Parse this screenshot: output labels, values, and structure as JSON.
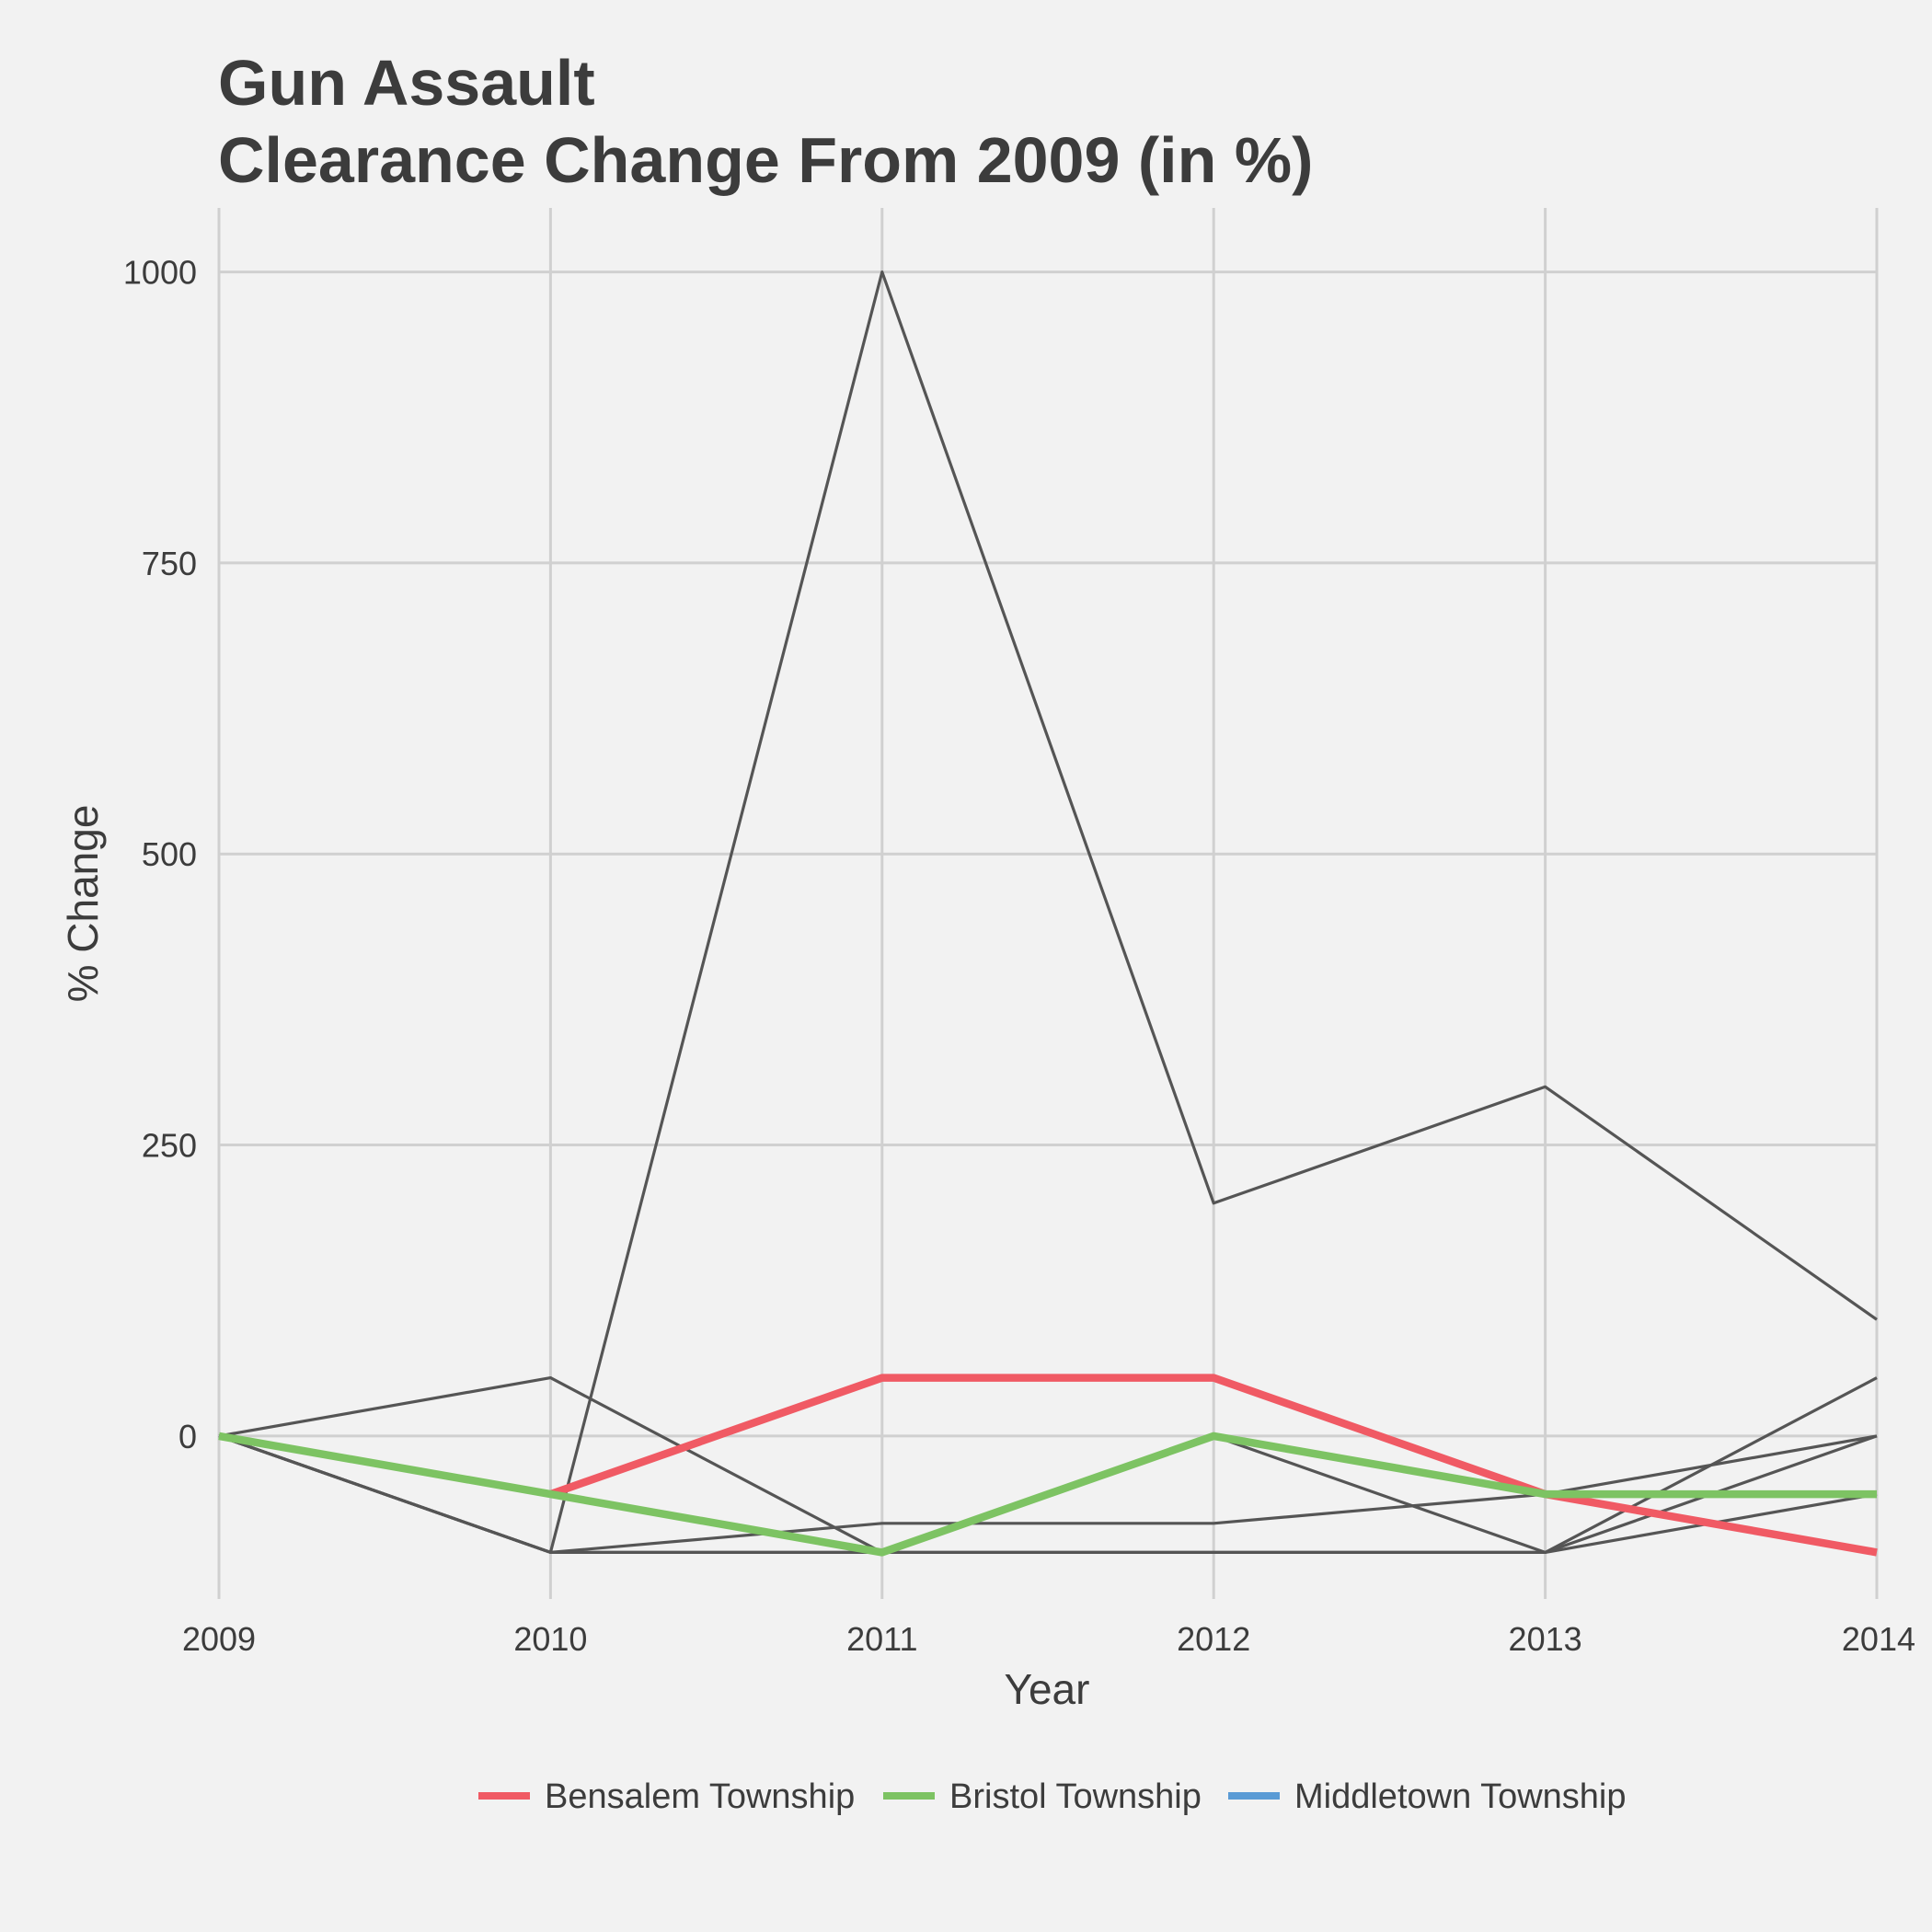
{
  "chart_data": {
    "type": "line",
    "title_line1": "Gun Assault",
    "title_line2": "Clearance Change From 2009 (in %)",
    "xlabel": "Year",
    "ylabel": "% Change",
    "x": [
      2009,
      2010,
      2011,
      2012,
      2013,
      2014
    ],
    "xlim": [
      2009,
      2014
    ],
    "ylim": [
      -140,
      1055
    ],
    "yticks": [
      0,
      250,
      500,
      750,
      1000
    ],
    "grid": true,
    "legend_position": "bottom",
    "background_series": [
      {
        "color": "#555555",
        "values": [
          0,
          -100,
          1000,
          200,
          300,
          100
        ]
      },
      {
        "color": "#555555",
        "values": [
          0,
          50,
          -100,
          -100,
          -100,
          50
        ]
      },
      {
        "color": "#555555",
        "values": [
          0,
          -100,
          -75,
          -75,
          -50,
          0
        ]
      },
      {
        "color": "#555555",
        "values": [
          0,
          -100,
          -100,
          0,
          -100,
          0
        ]
      },
      {
        "color": "#555555",
        "values": [
          0,
          -100,
          -100,
          -100,
          -100,
          -50
        ]
      }
    ],
    "series": [
      {
        "name": "Bensalem Township",
        "color": "#f05a64",
        "values": [
          null,
          -50,
          50,
          50,
          -50,
          -100
        ]
      },
      {
        "name": "Bristol Township",
        "color": "#7dc363",
        "values": [
          0,
          -50,
          -100,
          0,
          -50,
          -50
        ]
      },
      {
        "name": "Middletown Township",
        "color": "#5a9bd5",
        "values": [
          null,
          null,
          null,
          null,
          null,
          null
        ]
      }
    ]
  }
}
